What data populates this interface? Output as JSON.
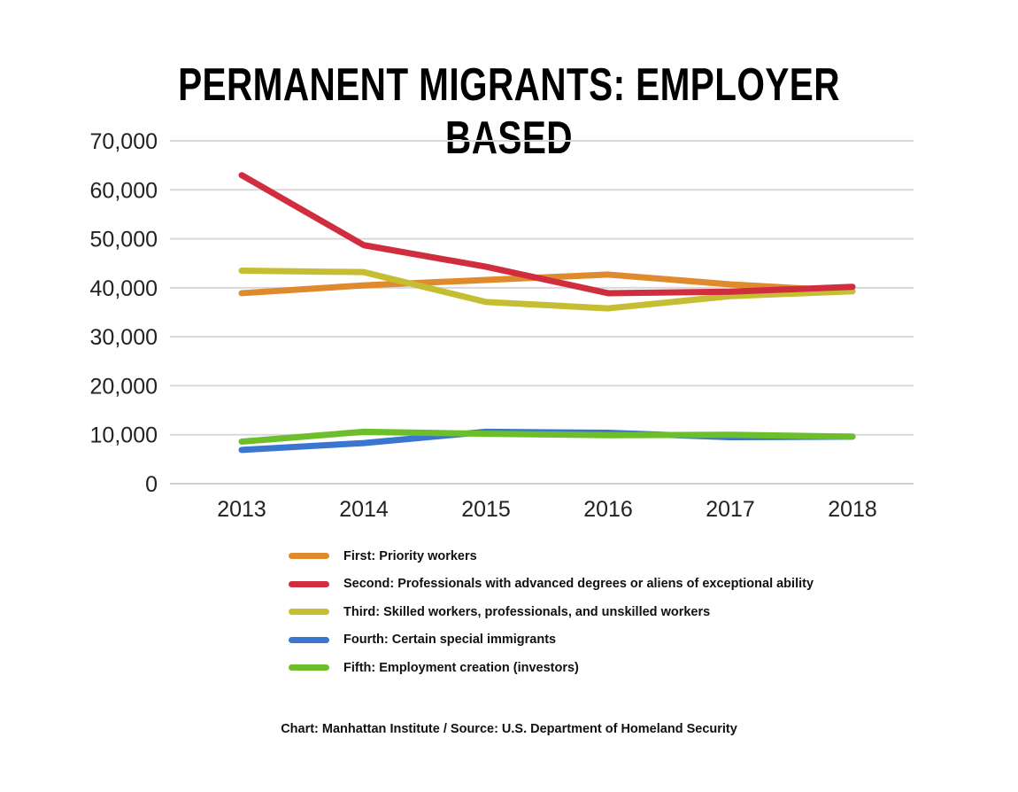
{
  "chart_data": {
    "type": "line",
    "title": "PERMANENT MIGRANTS: EMPLOYER BASED",
    "xlabel": "",
    "ylabel": "",
    "x": [
      "2013",
      "2014",
      "2015",
      "2016",
      "2017",
      "2018"
    ],
    "ylim": [
      0,
      70000
    ],
    "yticks": [
      "0",
      "10,000",
      "20,000",
      "30,000",
      "40,000",
      "50,000",
      "60,000",
      "70,000"
    ],
    "grid": true,
    "legend_position": "bottom",
    "series": [
      {
        "name": "First: Priority workers",
        "color": "#E08A2E",
        "values": [
          38900,
          40500,
          41600,
          42700,
          40700,
          39300
        ]
      },
      {
        "name": "Second: Professionals with advanced degrees or aliens of exceptional ability",
        "color": "#D02E3E",
        "values": [
          63000,
          48700,
          44300,
          38900,
          39200,
          40200
        ]
      },
      {
        "name": "Third: Skilled workers, professionals, and unskilled workers",
        "color": "#C5BE33",
        "values": [
          43500,
          43200,
          37100,
          35800,
          38300,
          39300
        ]
      },
      {
        "name": "Fourth: Certain special immigrants",
        "color": "#3A75CF",
        "values": [
          6900,
          8300,
          10600,
          10400,
          9500,
          9600
        ]
      },
      {
        "name": "Fifth: Employment creation (investors)",
        "color": "#6CBF2A",
        "values": [
          8600,
          10600,
          10200,
          9900,
          10000,
          9600
        ]
      }
    ],
    "source": "Chart: Manhattan Institute  /  Source: U.S. Department of Homeland Security"
  }
}
